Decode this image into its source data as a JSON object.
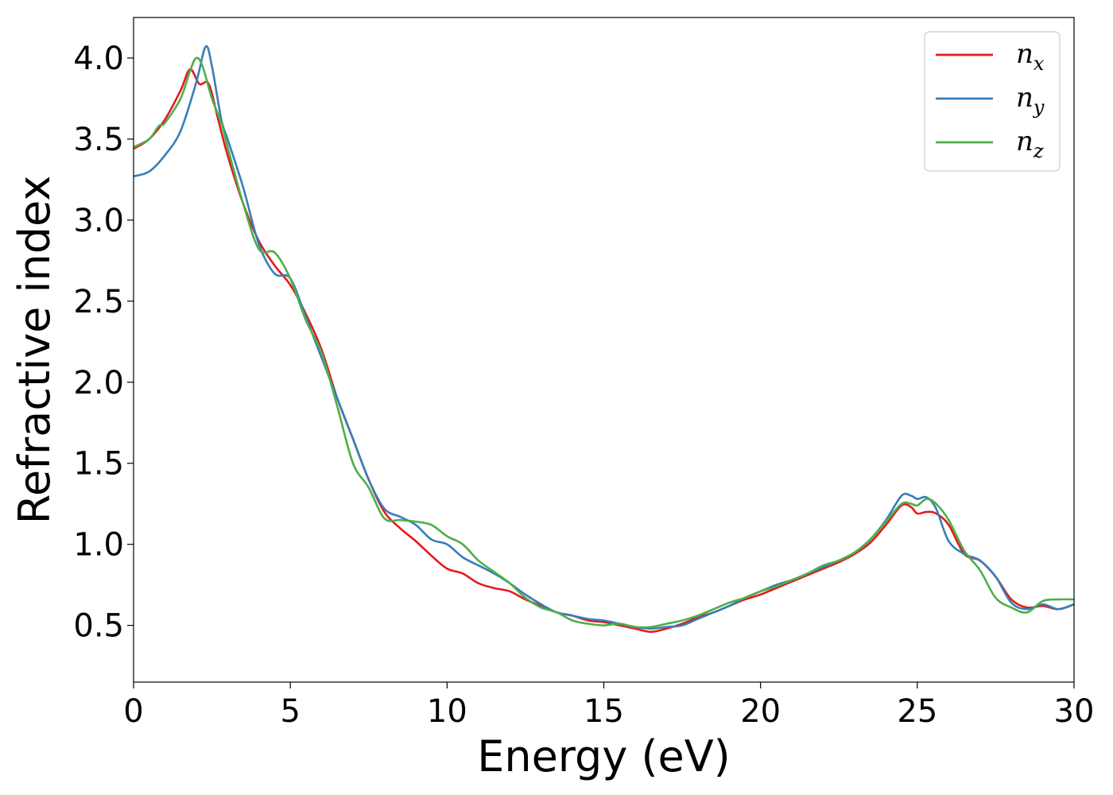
{
  "chart_data": {
    "type": "line",
    "xlabel": "Energy (eV)",
    "ylabel": "Refractive index",
    "xlim": [
      0,
      30
    ],
    "ylim": [
      0.15,
      4.25
    ],
    "xticks": [
      0,
      5,
      10,
      15,
      20,
      25,
      30
    ],
    "xtick_labels": [
      "0",
      "5",
      "10",
      "15",
      "20",
      "25",
      "30"
    ],
    "yticks": [
      0.5,
      1.0,
      1.5,
      2.0,
      2.5,
      3.0,
      3.5,
      4.0
    ],
    "ytick_labels": [
      "0.5",
      "1.0",
      "1.5",
      "2.0",
      "2.5",
      "3.0",
      "3.5",
      "4.0"
    ],
    "grid": false,
    "legend_position": "top-right",
    "series": [
      {
        "name": "n",
        "subscript": "x",
        "color": "#e41a1c",
        "x": [
          0,
          0.5,
          1.0,
          1.5,
          1.8,
          2.1,
          2.4,
          2.7,
          3.0,
          3.5,
          4.0,
          4.5,
          5.0,
          5.5,
          6.0,
          6.5,
          7.0,
          7.5,
          8.0,
          8.5,
          9.0,
          9.5,
          10.0,
          10.5,
          11.0,
          11.5,
          12.0,
          12.5,
          13.0,
          13.5,
          14.0,
          14.5,
          15.0,
          15.5,
          16.0,
          16.5,
          17.0,
          17.5,
          18.0,
          18.5,
          19.0,
          19.5,
          20.0,
          20.5,
          21.0,
          21.5,
          22.0,
          22.5,
          23.0,
          23.5,
          24.0,
          24.5,
          24.8,
          25.0,
          25.3,
          25.6,
          26.0,
          26.5,
          27.0,
          27.5,
          28.0,
          28.5,
          29.0,
          29.5,
          30.0
        ],
        "y": [
          3.44,
          3.5,
          3.62,
          3.8,
          3.93,
          3.84,
          3.84,
          3.62,
          3.4,
          3.1,
          2.87,
          2.72,
          2.6,
          2.42,
          2.2,
          1.9,
          1.65,
          1.4,
          1.2,
          1.1,
          1.02,
          0.93,
          0.85,
          0.82,
          0.76,
          0.73,
          0.71,
          0.66,
          0.62,
          0.58,
          0.56,
          0.53,
          0.52,
          0.5,
          0.48,
          0.46,
          0.48,
          0.51,
          0.55,
          0.58,
          0.62,
          0.66,
          0.69,
          0.73,
          0.77,
          0.81,
          0.85,
          0.89,
          0.94,
          1.01,
          1.12,
          1.24,
          1.23,
          1.19,
          1.2,
          1.19,
          1.12,
          0.94,
          0.9,
          0.8,
          0.66,
          0.61,
          0.62,
          0.6,
          0.63
        ]
      },
      {
        "name": "n",
        "subscript": "y",
        "color": "#377eb8",
        "x": [
          0,
          0.5,
          1.0,
          1.5,
          2.0,
          2.3,
          2.5,
          2.8,
          3.0,
          3.5,
          4.0,
          4.5,
          5.0,
          5.5,
          6.0,
          6.5,
          7.0,
          7.5,
          8.0,
          8.5,
          9.0,
          9.5,
          10.0,
          10.5,
          11.0,
          11.5,
          12.0,
          12.5,
          13.0,
          13.5,
          14.0,
          14.5,
          15.0,
          15.5,
          16.0,
          16.5,
          17.0,
          17.5,
          18.0,
          18.5,
          19.0,
          19.5,
          20.0,
          20.5,
          21.0,
          21.5,
          22.0,
          22.5,
          23.0,
          23.5,
          24.0,
          24.5,
          24.8,
          25.0,
          25.3,
          25.6,
          26.0,
          26.5,
          27.0,
          27.5,
          28.0,
          28.5,
          29.0,
          29.5,
          30.0
        ],
        "y": [
          3.27,
          3.3,
          3.4,
          3.55,
          3.85,
          4.07,
          3.95,
          3.62,
          3.5,
          3.2,
          2.85,
          2.67,
          2.64,
          2.4,
          2.15,
          1.9,
          1.65,
          1.4,
          1.22,
          1.17,
          1.12,
          1.03,
          1.0,
          0.92,
          0.87,
          0.82,
          0.76,
          0.69,
          0.63,
          0.58,
          0.56,
          0.54,
          0.53,
          0.51,
          0.49,
          0.48,
          0.49,
          0.5,
          0.54,
          0.58,
          0.62,
          0.67,
          0.71,
          0.75,
          0.78,
          0.82,
          0.86,
          0.9,
          0.95,
          1.03,
          1.15,
          1.3,
          1.3,
          1.28,
          1.29,
          1.22,
          1.02,
          0.94,
          0.9,
          0.8,
          0.64,
          0.6,
          0.63,
          0.6,
          0.63
        ]
      },
      {
        "name": "n",
        "subscript": "z",
        "color": "#4daf4a",
        "x": [
          0,
          0.5,
          0.8,
          1.0,
          1.5,
          1.8,
          2.0,
          2.2,
          2.5,
          2.8,
          3.0,
          3.5,
          4.0,
          4.5,
          5.0,
          5.5,
          6.0,
          6.5,
          7.0,
          7.5,
          8.0,
          8.5,
          9.0,
          9.5,
          10.0,
          10.5,
          11.0,
          11.5,
          12.0,
          12.5,
          13.0,
          13.5,
          14.0,
          14.5,
          15.0,
          15.5,
          16.0,
          16.5,
          17.0,
          17.5,
          18.0,
          18.5,
          19.0,
          19.5,
          20.0,
          20.5,
          21.0,
          21.5,
          22.0,
          22.5,
          23.0,
          23.5,
          24.0,
          24.5,
          24.8,
          25.0,
          25.3,
          25.6,
          26.0,
          26.5,
          27.0,
          27.5,
          28.0,
          28.5,
          29.0,
          29.5,
          30.0
        ],
        "y": [
          3.45,
          3.5,
          3.58,
          3.6,
          3.75,
          3.92,
          4.0,
          3.95,
          3.75,
          3.6,
          3.45,
          3.1,
          2.82,
          2.8,
          2.64,
          2.38,
          2.18,
          1.85,
          1.5,
          1.35,
          1.16,
          1.15,
          1.14,
          1.12,
          1.05,
          1.0,
          0.9,
          0.83,
          0.76,
          0.67,
          0.61,
          0.58,
          0.53,
          0.51,
          0.5,
          0.51,
          0.49,
          0.49,
          0.51,
          0.53,
          0.56,
          0.6,
          0.64,
          0.67,
          0.71,
          0.74,
          0.78,
          0.82,
          0.87,
          0.9,
          0.95,
          1.03,
          1.14,
          1.25,
          1.25,
          1.24,
          1.28,
          1.25,
          1.15,
          0.96,
          0.84,
          0.67,
          0.61,
          0.58,
          0.65,
          0.66,
          0.66
        ]
      }
    ]
  }
}
